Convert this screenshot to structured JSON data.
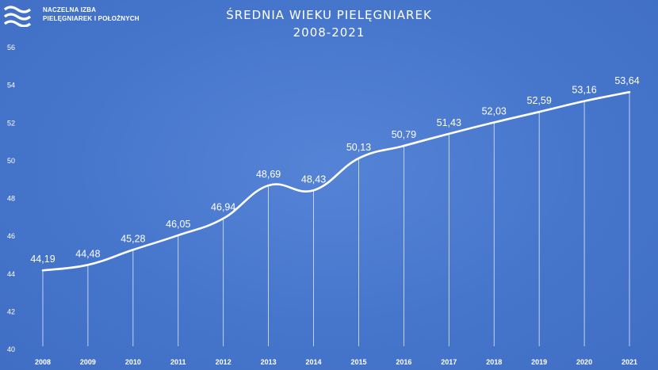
{
  "logo": {
    "line1": "NACZELNA IZBA",
    "line2": "PIELĘGNIAREK I POŁOŻNYCH"
  },
  "colors": {
    "background": "#4a7bd0",
    "line": "#ffffff",
    "text": "#ffffff"
  },
  "chart_data": {
    "type": "line",
    "title": "ŚREDNIA WIEKU PIELĘGNIAREK",
    "subtitle": "2008-2021",
    "xlabel": "",
    "ylabel": "",
    "categories": [
      "2008",
      "2009",
      "2010",
      "2011",
      "2012",
      "2013",
      "2014",
      "2015",
      "2016",
      "2017",
      "2018",
      "2019",
      "2020",
      "2021"
    ],
    "series": [
      {
        "values": [
          44.19,
          44.48,
          45.28,
          46.05,
          46.94,
          48.69,
          48.43,
          50.13,
          50.79,
          51.43,
          52.03,
          52.59,
          53.16,
          53.64
        ],
        "labels": [
          "44,19",
          "44,48",
          "45,28",
          "46,05",
          "46,94",
          "48,69",
          "48,43",
          "50,13",
          "50,79",
          "51,43",
          "52,03",
          "52,59",
          "53,16",
          "53,64"
        ]
      }
    ],
    "ylim": [
      40,
      56
    ],
    "yticks": [
      "40",
      "42",
      "44",
      "46",
      "48",
      "50",
      "52",
      "54",
      "56"
    ],
    "grid": false,
    "drop_lines": true,
    "legend": "none",
    "smooth": true
  }
}
